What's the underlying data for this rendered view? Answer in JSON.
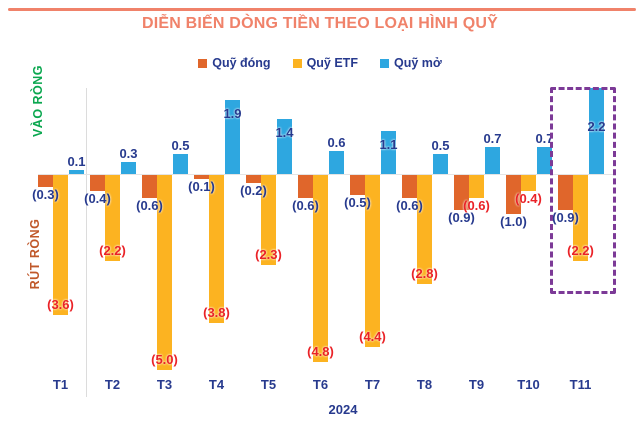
{
  "title": "DIỄN BIẾN DÒNG TIỀN THEO LOẠI HÌNH QUỸ",
  "legend": [
    {
      "label": "Quỹ đóng",
      "color": "#E0662B"
    },
    {
      "label": "Quỹ ETF",
      "color": "#FCB321"
    },
    {
      "label": "Quỹ mở",
      "color": "#2EA7E0"
    }
  ],
  "axis": {
    "inflow_label": "VÀO RÒNG",
    "outflow_label": "RÚT RÒNG",
    "year_label": "2024"
  },
  "colors": {
    "accent_coral": "#F0826A",
    "navy_text": "#273A8E",
    "red_label": "#EA2227",
    "green_inflow": "#0AA74F",
    "brick_outflow": "#C0582A",
    "highlight_purple": "#7C3A97"
  },
  "chart_data": {
    "type": "bar",
    "title": "DIỄN BIẾN DÒNG TIỀN THEO LOẠI HÌNH QUỸ",
    "xlabel": "2024",
    "ylabel": "",
    "ylim": [
      -5.5,
      2.5
    ],
    "grid": false,
    "legend_position": "top",
    "categories": [
      "T1",
      "T2",
      "T3",
      "T4",
      "T5",
      "T6",
      "T7",
      "T8",
      "T9",
      "T10",
      "T11"
    ],
    "series": [
      {
        "name": "Quỹ đóng",
        "color": "#E0662B",
        "label_color": "#273A8E",
        "values": [
          -0.3,
          -0.4,
          -0.6,
          -0.1,
          -0.2,
          -0.6,
          -0.5,
          -0.6,
          -0.9,
          -1.0,
          -0.9
        ],
        "labels": [
          "(0.3)",
          "(0.4)",
          "(0.6)",
          "(0.1)",
          "(0.2)",
          "(0.6)",
          "(0.5)",
          "(0.6)",
          "(0.9)",
          "(1.0)",
          "(0.9)"
        ]
      },
      {
        "name": "Quỹ ETF",
        "color": "#FCB321",
        "label_color": "#EA2227",
        "values": [
          -3.6,
          -2.2,
          -5.0,
          -3.8,
          -2.3,
          -4.8,
          -4.4,
          -2.8,
          -0.6,
          -0.4,
          -2.2
        ],
        "labels": [
          "(3.6)",
          "(2.2)",
          "(5.0)",
          "(3.8)",
          "(2.3)",
          "(4.8)",
          "(4.4)",
          "(2.8)",
          "(0.6)",
          "(0.4)",
          "(2.2)"
        ]
      },
      {
        "name": "Quỹ mở",
        "color": "#2EA7E0",
        "label_color": "#273A8E",
        "values": [
          0.1,
          0.3,
          0.5,
          1.9,
          1.4,
          0.6,
          1.1,
          0.5,
          0.7,
          0.7,
          2.2
        ],
        "labels": [
          "0.1",
          "0.3",
          "0.5",
          "1.9",
          "1.4",
          "0.6",
          "1.1",
          "0.5",
          "0.7",
          "0.7",
          "2.2"
        ]
      }
    ],
    "highlighted_category": "T11"
  }
}
